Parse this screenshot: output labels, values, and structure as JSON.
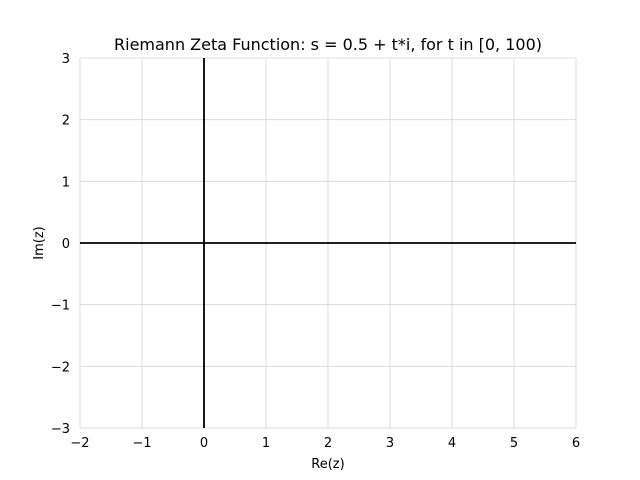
{
  "chart_data": {
    "type": "line",
    "title": "Riemann Zeta Function: s = 0.5 + t*i, for t in [0, 100)",
    "xlabel": "Re(z)",
    "ylabel": "Im(z)",
    "xlim": [
      -2,
      6
    ],
    "ylim": [
      -3,
      3
    ],
    "x_ticks": [
      -2,
      -1,
      0,
      1,
      2,
      3,
      4,
      5,
      6
    ],
    "y_ticks": [
      -3,
      -2,
      -1,
      0,
      1,
      2,
      3
    ],
    "x_tick_labels": [
      "−2",
      "−1",
      "0",
      "1",
      "2",
      "3",
      "4",
      "5",
      "6"
    ],
    "y_tick_labels": [
      "−3",
      "−2",
      "−1",
      "0",
      "1",
      "2",
      "3"
    ],
    "grid": true,
    "reference_lines": {
      "x": 0,
      "y": 0
    },
    "series": [],
    "colors": {
      "grid": "#d3d3d3",
      "reference_line": "#000000",
      "text": "#000000"
    }
  }
}
